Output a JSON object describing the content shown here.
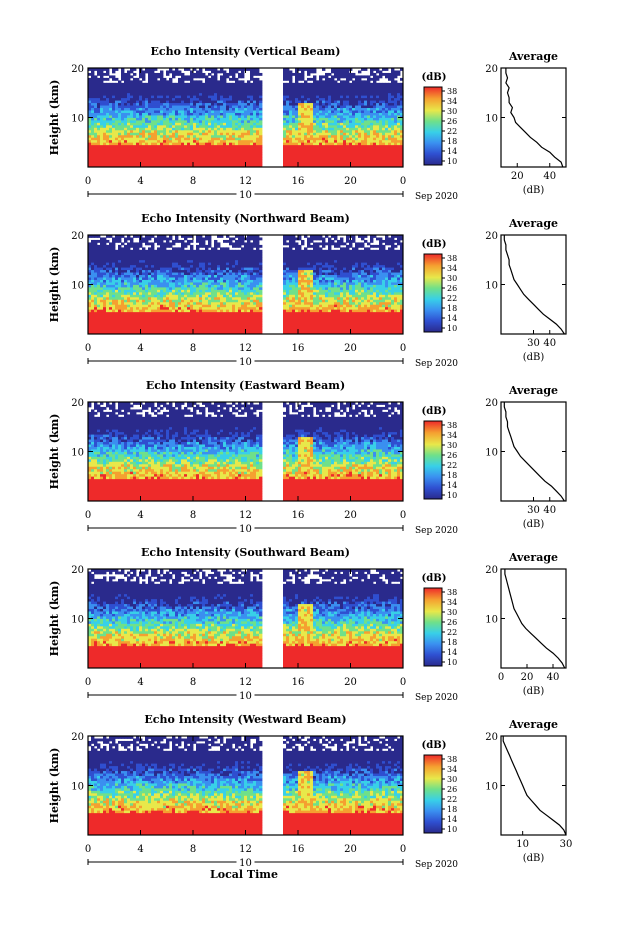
{
  "chart_data": [
    {
      "type": "heatmap",
      "title": "Echo Intensity (Vertical Beam)",
      "ylabel": "Height (km)",
      "ylim": [
        0,
        20
      ],
      "xticks": [
        "0",
        "4",
        "8",
        "12",
        "16",
        "20",
        "0"
      ],
      "xlim": [
        0,
        24
      ],
      "day_label": "10",
      "date_label": "Sep 2020",
      "colorbar": {
        "label": "(dB)",
        "ticks": [
          "38",
          "34",
          "30",
          "26",
          "22",
          "18",
          "14",
          "10"
        ],
        "range": [
          10,
          38
        ]
      },
      "profile": {
        "title": "Average",
        "xlabel": "(dB)",
        "xticks": [
          "20",
          "40"
        ],
        "xlim": [
          10,
          50
        ],
        "yticks": [
          "20",
          "10"
        ],
        "height": [
          0,
          1,
          2,
          3,
          4,
          5,
          6,
          7,
          8,
          9,
          10,
          11,
          12,
          13,
          14,
          15,
          16,
          17,
          18,
          19,
          20
        ],
        "value": [
          48,
          47,
          43,
          40,
          35,
          32,
          28,
          25,
          22,
          19,
          18,
          16,
          17,
          15,
          15,
          14,
          15,
          13,
          14,
          13,
          13
        ]
      }
    },
    {
      "type": "heatmap",
      "title": "Echo Intensity (Northward Beam)",
      "ylabel": "Height (km)",
      "ylim": [
        0,
        20
      ],
      "xticks": [
        "0",
        "4",
        "8",
        "12",
        "16",
        "20",
        "0"
      ],
      "xlim": [
        0,
        24
      ],
      "day_label": "10",
      "date_label": "Sep 2020",
      "colorbar": {
        "label": "(dB)",
        "ticks": [
          "38",
          "34",
          "30",
          "26",
          "22",
          "18",
          "14",
          "10"
        ],
        "range": [
          10,
          38
        ]
      },
      "profile": {
        "title": "Average",
        "xlabel": "(dB)",
        "xticks": [
          "30",
          "40"
        ],
        "xlim": [
          10,
          50
        ],
        "yticks": [
          "20",
          "10"
        ],
        "height": [
          0,
          1,
          2,
          3,
          4,
          5,
          6,
          7,
          8,
          9,
          10,
          11,
          12,
          13,
          14,
          15,
          16,
          17,
          18,
          19,
          20
        ],
        "value": [
          49,
          47,
          44,
          40,
          36,
          33,
          30,
          27,
          24,
          22,
          20,
          18,
          17,
          16,
          15,
          15,
          14,
          13,
          13,
          12,
          12
        ]
      }
    },
    {
      "type": "heatmap",
      "title": "Echo Intensity (Eastward Beam)",
      "ylabel": "Height (km)",
      "ylim": [
        0,
        20
      ],
      "xticks": [
        "0",
        "4",
        "8",
        "12",
        "16",
        "20",
        "0"
      ],
      "xlim": [
        0,
        24
      ],
      "day_label": "10",
      "date_label": "Sep 2020",
      "colorbar": {
        "label": "(dB)",
        "ticks": [
          "38",
          "34",
          "30",
          "26",
          "22",
          "18",
          "14",
          "10"
        ],
        "range": [
          10,
          38
        ]
      },
      "profile": {
        "title": "Average",
        "xlabel": "(dB)",
        "xticks": [
          "30",
          "40"
        ],
        "xlim": [
          10,
          50
        ],
        "yticks": [
          "20",
          "10"
        ],
        "height": [
          0,
          1,
          2,
          3,
          4,
          5,
          6,
          7,
          8,
          9,
          10,
          11,
          12,
          13,
          14,
          15,
          16,
          17,
          18,
          19,
          20
        ],
        "value": [
          49,
          47,
          44,
          41,
          37,
          34,
          31,
          28,
          25,
          22,
          20,
          18,
          17,
          16,
          15,
          14,
          14,
          13,
          13,
          12,
          12
        ]
      }
    },
    {
      "type": "heatmap",
      "title": "Echo Intensity (Southward Beam)",
      "ylabel": "Height (km)",
      "ylim": [
        0,
        20
      ],
      "xticks": [
        "0",
        "4",
        "8",
        "12",
        "16",
        "20",
        "0"
      ],
      "xlim": [
        0,
        24
      ],
      "day_label": "10",
      "date_label": "Sep 2020",
      "colorbar": {
        "label": "(dB)",
        "ticks": [
          "38",
          "34",
          "30",
          "26",
          "22",
          "18",
          "14",
          "10"
        ],
        "range": [
          10,
          38
        ]
      },
      "profile": {
        "title": "Average",
        "xlabel": "(dB)",
        "xticks": [
          "0",
          "20",
          "40"
        ],
        "xlim": [
          0,
          50
        ],
        "yticks": [
          "20",
          "10"
        ],
        "height": [
          0,
          1,
          2,
          3,
          4,
          5,
          6,
          7,
          8,
          9,
          10,
          11,
          12,
          13,
          14,
          15,
          16,
          17,
          18,
          19,
          20
        ],
        "value": [
          49,
          47,
          44,
          40,
          35,
          31,
          27,
          23,
          19,
          16,
          14,
          12,
          10,
          9,
          8,
          7,
          6,
          5,
          4,
          3,
          3
        ]
      }
    },
    {
      "type": "heatmap",
      "title": "Echo Intensity (Westward Beam)",
      "ylabel": "Height (km)",
      "ylim": [
        0,
        20
      ],
      "xticks": [
        "0",
        "4",
        "8",
        "12",
        "16",
        "20",
        "0"
      ],
      "xlim": [
        0,
        24
      ],
      "day_label": "10",
      "date_label": "Sep 2020",
      "colorbar": {
        "label": "(dB)",
        "ticks": [
          "38",
          "34",
          "30",
          "26",
          "22",
          "18",
          "14",
          "10"
        ],
        "range": [
          10,
          38
        ]
      },
      "profile": {
        "title": "Average",
        "xlabel": "(dB)",
        "xticks": [
          "10",
          "30"
        ],
        "xlim": [
          0,
          30
        ],
        "yticks": [
          "20",
          "10"
        ],
        "height": [
          0,
          1,
          2,
          3,
          4,
          5,
          6,
          7,
          8,
          9,
          10,
          11,
          12,
          13,
          14,
          15,
          16,
          17,
          18,
          19,
          20
        ],
        "value": [
          30,
          29,
          27,
          24,
          21,
          18,
          16,
          14,
          12,
          11,
          10,
          9,
          8,
          7,
          6,
          5,
          4,
          3,
          2,
          1,
          1
        ]
      }
    }
  ],
  "footer": {
    "xlabel": "Local Time"
  },
  "colors": {
    "colormap": [
      "#2a2a8c",
      "#2f4fd0",
      "#3a8ff0",
      "#38d0e8",
      "#6fe08a",
      "#e8e84a",
      "#f5a030",
      "#ee2a2a"
    ],
    "panel_border": "#000000",
    "gap": "#ffffff"
  }
}
